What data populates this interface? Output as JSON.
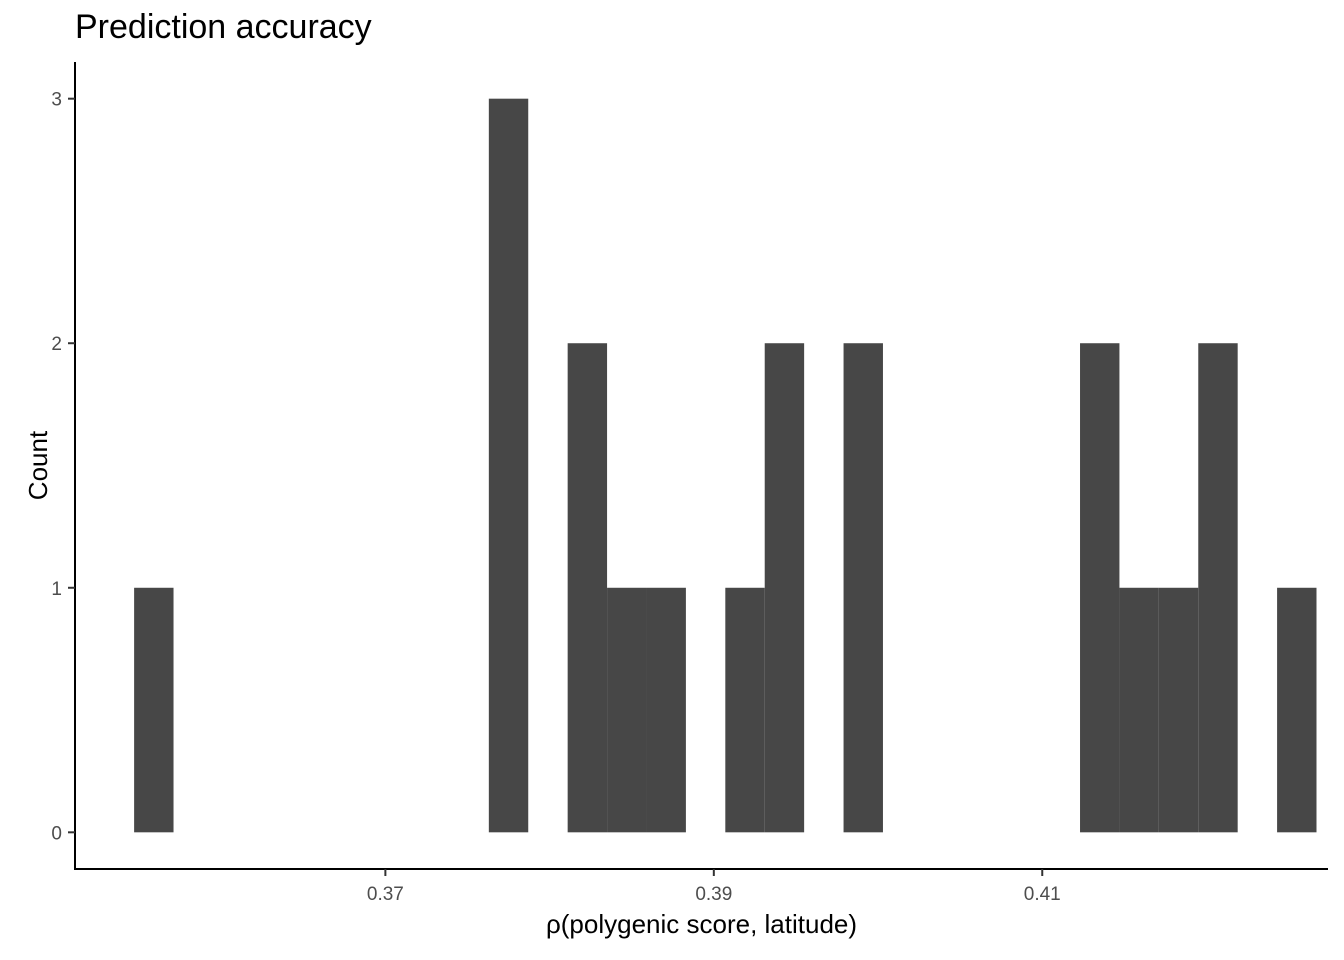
{
  "chart_data": {
    "type": "bar",
    "title": "Prediction accuracy",
    "xlabel": "ρ(polygenic score, latitude)",
    "ylabel": "Count",
    "bar_color": "#474747",
    "axis_color": "#000000",
    "tick_label_color": "#4d4d4d",
    "grid": false,
    "legend": "none",
    "xlim": [
      0.3511,
      0.4274
    ],
    "ylim": [
      -0.15,
      3.15
    ],
    "x_ticks": [
      0.37,
      0.39,
      0.41
    ],
    "x_tick_labels": [
      "0.37",
      "0.39",
      "0.41"
    ],
    "y_ticks": [
      0,
      1,
      2,
      3
    ],
    "y_tick_labels": [
      "0",
      "1",
      "2",
      "3"
    ],
    "bins": [
      {
        "x0": 0.3547,
        "x1": 0.3571,
        "count": 1
      },
      {
        "x0": 0.3763,
        "x1": 0.3787,
        "count": 3
      },
      {
        "x0": 0.3811,
        "x1": 0.3835,
        "count": 2
      },
      {
        "x0": 0.3835,
        "x1": 0.3859,
        "count": 1
      },
      {
        "x0": 0.3859,
        "x1": 0.3883,
        "count": 1
      },
      {
        "x0": 0.3907,
        "x1": 0.3931,
        "count": 1
      },
      {
        "x0": 0.3931,
        "x1": 0.3955,
        "count": 2
      },
      {
        "x0": 0.3979,
        "x1": 0.4003,
        "count": 2
      },
      {
        "x0": 0.4123,
        "x1": 0.4147,
        "count": 2
      },
      {
        "x0": 0.4147,
        "x1": 0.4171,
        "count": 1
      },
      {
        "x0": 0.4171,
        "x1": 0.4195,
        "count": 1
      },
      {
        "x0": 0.4195,
        "x1": 0.4219,
        "count": 2
      },
      {
        "x0": 0.4243,
        "x1": 0.4267,
        "count": 1
      }
    ]
  }
}
